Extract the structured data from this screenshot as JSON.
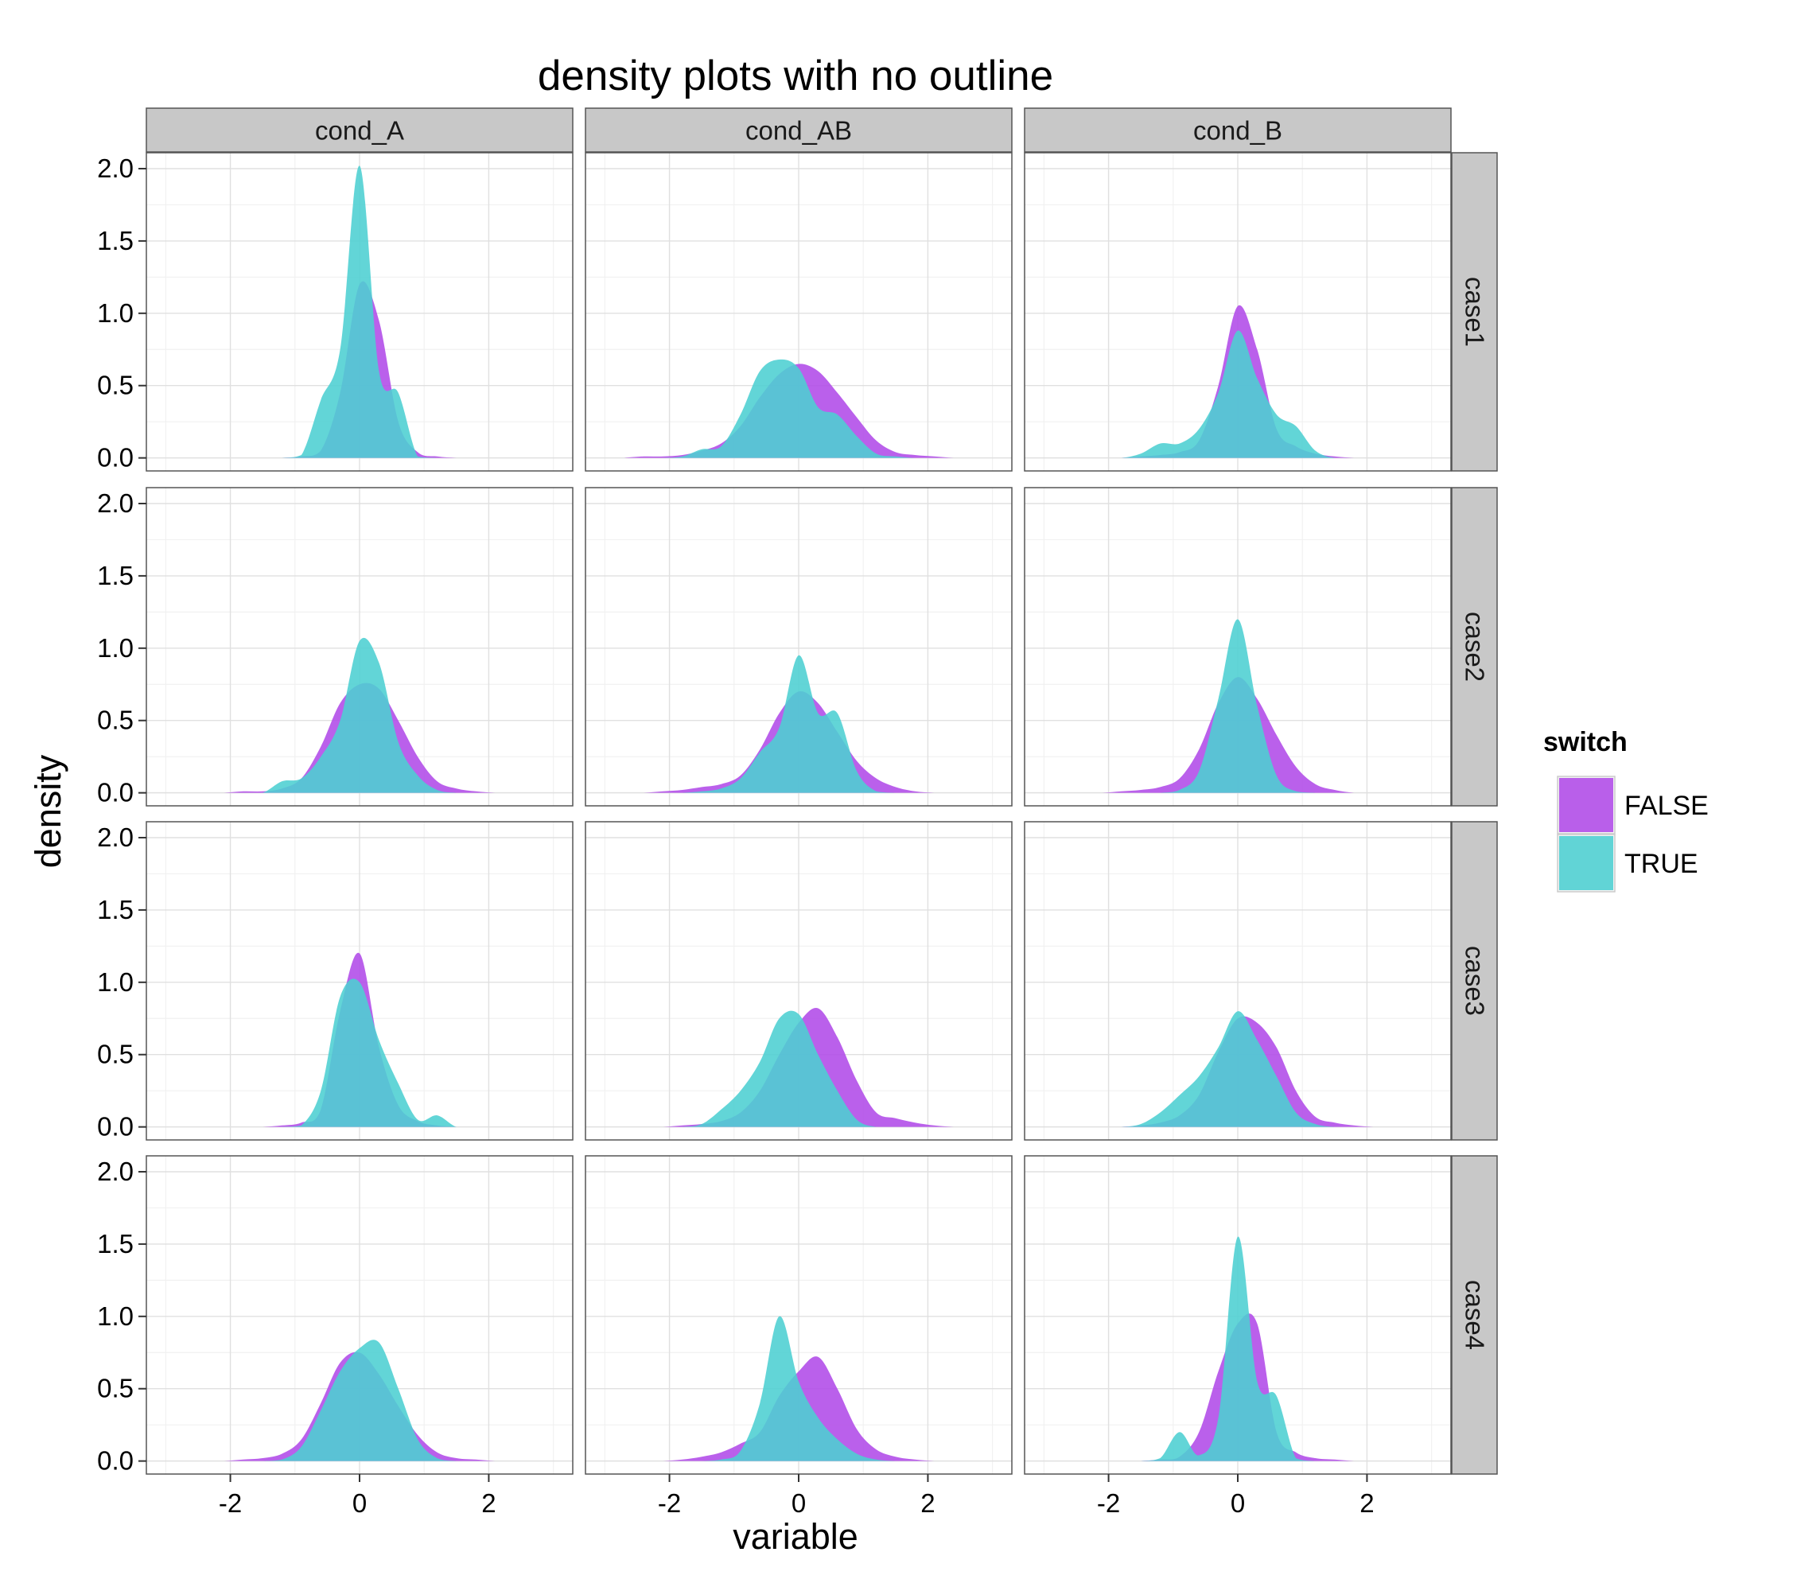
{
  "chart_data": {
    "type": "area",
    "subtype": "faceted density",
    "title": "density plots with no outline",
    "xlabel": "variable",
    "ylabel": "density",
    "xlim": [
      -3.3,
      3.3
    ],
    "ylim": [
      -0.09,
      2.11
    ],
    "x_ticks": [
      -2,
      0,
      2
    ],
    "x_tick_labels": [
      "-2",
      "0",
      "2"
    ],
    "y_ticks": [
      0,
      0.5,
      1,
      1.5,
      2
    ],
    "y_tick_labels": [
      "0.0",
      "0.5",
      "1.0",
      "1.5",
      "2.0"
    ],
    "grid": true,
    "columns": [
      "cond_A",
      "cond_AB",
      "cond_B"
    ],
    "rows": [
      "case1",
      "case2",
      "case3",
      "case4"
    ],
    "legend": {
      "title": "switch",
      "position": "right",
      "entries": [
        {
          "name": "FALSE",
          "color": "#b04ae8"
        },
        {
          "name": "TRUE",
          "color": "#4ccfd2"
        }
      ]
    },
    "x": [
      -2.7,
      -2.4,
      -2.1,
      -1.8,
      -1.5,
      -1.2,
      -0.9,
      -0.6,
      -0.3,
      0,
      0.3,
      0.6,
      0.9,
      1.2,
      1.5,
      1.8,
      2.1,
      2.4,
      2.7
    ],
    "panels": [
      {
        "row": "case1",
        "col": "cond_A",
        "series": [
          {
            "name": "FALSE",
            "values": [
              0,
              0,
              0,
              0,
              0,
              0,
              0.01,
              0.05,
              0.45,
              1.2,
              0.95,
              0.25,
              0.04,
              0.01,
              0,
              0,
              0,
              0,
              0
            ]
          },
          {
            "name": "TRUE",
            "values": [
              0,
              0,
              0,
              0,
              0,
              0,
              0.02,
              0.4,
              0.75,
              2.02,
              0.6,
              0.45,
              0.01,
              0,
              0,
              0,
              0,
              0,
              0
            ]
          }
        ]
      },
      {
        "row": "case1",
        "col": "cond_AB",
        "series": [
          {
            "name": "FALSE",
            "values": [
              0,
              0.01,
              0.01,
              0.02,
              0.05,
              0.1,
              0.22,
              0.42,
              0.58,
              0.65,
              0.6,
              0.45,
              0.28,
              0.12,
              0.04,
              0.02,
              0.01,
              0,
              0
            ]
          },
          {
            "name": "TRUE",
            "values": [
              0,
              0,
              0,
              0.01,
              0.06,
              0.08,
              0.3,
              0.6,
              0.68,
              0.62,
              0.35,
              0.3,
              0.15,
              0.03,
              0.01,
              0,
              0,
              0,
              0
            ]
          }
        ]
      },
      {
        "row": "case1",
        "col": "cond_B",
        "series": [
          {
            "name": "FALSE",
            "values": [
              0,
              0,
              0,
              0,
              0.01,
              0.02,
              0.04,
              0.12,
              0.5,
              1.05,
              0.75,
              0.2,
              0.08,
              0.03,
              0.01,
              0,
              0,
              0,
              0
            ]
          },
          {
            "name": "TRUE",
            "values": [
              0,
              0,
              0,
              0,
              0.03,
              0.1,
              0.1,
              0.2,
              0.45,
              0.88,
              0.55,
              0.3,
              0.22,
              0.05,
              0,
              0,
              0,
              0,
              0
            ]
          }
        ]
      },
      {
        "row": "case2",
        "col": "cond_A",
        "series": [
          {
            "name": "FALSE",
            "values": [
              0,
              0,
              0,
              0.01,
              0.01,
              0.03,
              0.1,
              0.32,
              0.62,
              0.75,
              0.72,
              0.5,
              0.25,
              0.08,
              0.03,
              0.01,
              0,
              0,
              0
            ]
          },
          {
            "name": "TRUE",
            "values": [
              0,
              0,
              0,
              0,
              0,
              0.08,
              0.1,
              0.25,
              0.5,
              1.05,
              0.9,
              0.35,
              0.12,
              0.02,
              0,
              0,
              0,
              0,
              0
            ]
          }
        ]
      },
      {
        "row": "case2",
        "col": "cond_AB",
        "series": [
          {
            "name": "FALSE",
            "values": [
              0,
              0,
              0.01,
              0.02,
              0.04,
              0.06,
              0.12,
              0.3,
              0.55,
              0.7,
              0.62,
              0.42,
              0.22,
              0.1,
              0.04,
              0.01,
              0,
              0,
              0
            ]
          },
          {
            "name": "TRUE",
            "values": [
              0,
              0,
              0,
              0,
              0.01,
              0.03,
              0.1,
              0.28,
              0.45,
              0.95,
              0.55,
              0.55,
              0.15,
              0.01,
              0,
              0,
              0,
              0,
              0
            ]
          }
        ]
      },
      {
        "row": "case2",
        "col": "cond_B",
        "series": [
          {
            "name": "FALSE",
            "values": [
              0,
              0,
              0,
              0.01,
              0.02,
              0.04,
              0.1,
              0.3,
              0.62,
              0.8,
              0.65,
              0.4,
              0.18,
              0.06,
              0.02,
              0,
              0,
              0,
              0
            ]
          },
          {
            "name": "TRUE",
            "values": [
              0,
              0,
              0,
              0,
              0,
              0,
              0.02,
              0.15,
              0.65,
              1.2,
              0.6,
              0.12,
              0.01,
              0,
              0,
              0,
              0,
              0,
              0
            ]
          }
        ]
      },
      {
        "row": "case3",
        "col": "cond_A",
        "series": [
          {
            "name": "FALSE",
            "values": [
              0,
              0,
              0,
              0,
              0,
              0.01,
              0.03,
              0.12,
              0.8,
              1.2,
              0.55,
              0.15,
              0.04,
              0.01,
              0,
              0,
              0,
              0,
              0
            ]
          },
          {
            "name": "TRUE",
            "values": [
              0,
              0,
              0,
              0,
              0,
              0,
              0.01,
              0.25,
              0.9,
              1.0,
              0.6,
              0.3,
              0.05,
              0.08,
              0,
              0,
              0,
              0,
              0
            ]
          }
        ]
      },
      {
        "row": "case3",
        "col": "cond_AB",
        "series": [
          {
            "name": "FALSE",
            "values": [
              0,
              0,
              0,
              0.01,
              0.02,
              0.04,
              0.1,
              0.25,
              0.5,
              0.72,
              0.82,
              0.62,
              0.32,
              0.1,
              0.06,
              0.03,
              0.01,
              0,
              0
            ]
          },
          {
            "name": "TRUE",
            "values": [
              0,
              0,
              0,
              0,
              0.02,
              0.12,
              0.25,
              0.45,
              0.75,
              0.78,
              0.5,
              0.25,
              0.05,
              0,
              0,
              0,
              0,
              0,
              0
            ]
          }
        ]
      },
      {
        "row": "case3",
        "col": "cond_B",
        "series": [
          {
            "name": "FALSE",
            "values": [
              0,
              0,
              0,
              0,
              0.01,
              0.03,
              0.08,
              0.22,
              0.52,
              0.75,
              0.72,
              0.55,
              0.25,
              0.07,
              0.03,
              0.01,
              0,
              0,
              0
            ]
          },
          {
            "name": "TRUE",
            "values": [
              0,
              0,
              0,
              0,
              0.02,
              0.1,
              0.22,
              0.35,
              0.55,
              0.8,
              0.6,
              0.35,
              0.1,
              0.02,
              0,
              0,
              0,
              0,
              0
            ]
          }
        ]
      },
      {
        "row": "case4",
        "col": "cond_A",
        "series": [
          {
            "name": "FALSE",
            "values": [
              0,
              0,
              0,
              0.01,
              0.02,
              0.05,
              0.15,
              0.4,
              0.68,
              0.75,
              0.6,
              0.38,
              0.18,
              0.06,
              0.02,
              0.01,
              0,
              0,
              0
            ]
          },
          {
            "name": "TRUE",
            "values": [
              0,
              0,
              0,
              0,
              0,
              0.01,
              0.1,
              0.35,
              0.62,
              0.78,
              0.82,
              0.5,
              0.15,
              0.02,
              0,
              0,
              0,
              0,
              0
            ]
          }
        ]
      },
      {
        "row": "case4",
        "col": "cond_AB",
        "series": [
          {
            "name": "FALSE",
            "values": [
              0,
              0,
              0,
              0.01,
              0.03,
              0.06,
              0.12,
              0.2,
              0.45,
              0.62,
              0.72,
              0.5,
              0.22,
              0.08,
              0.03,
              0.01,
              0,
              0,
              0
            ]
          },
          {
            "name": "TRUE",
            "values": [
              0,
              0,
              0,
              0,
              0,
              0.01,
              0.07,
              0.4,
              1.0,
              0.55,
              0.3,
              0.15,
              0.05,
              0.01,
              0,
              0,
              0,
              0,
              0
            ]
          }
        ]
      },
      {
        "row": "case4",
        "col": "cond_B",
        "series": [
          {
            "name": "FALSE",
            "values": [
              0,
              0,
              0,
              0,
              0,
              0.01,
              0.03,
              0.2,
              0.62,
              0.95,
              0.95,
              0.2,
              0.06,
              0.02,
              0.01,
              0,
              0,
              0,
              0
            ]
          },
          {
            "name": "TRUE",
            "values": [
              0,
              0,
              0,
              0,
              0,
              0.02,
              0.2,
              0.04,
              0.3,
              1.55,
              0.55,
              0.45,
              0.02,
              0,
              0,
              0,
              0,
              0,
              0
            ]
          }
        ]
      }
    ]
  }
}
